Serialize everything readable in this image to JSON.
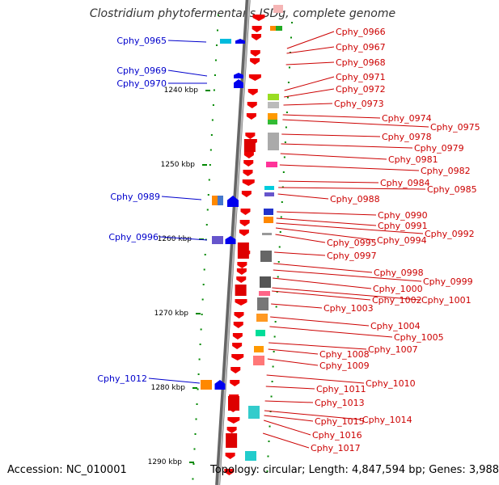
{
  "title": "Clostridium phytofermentans ISDg, complete genome",
  "footer": {
    "accession": "Accession: NC_010001",
    "topology": "Topology: circular; Length: 4,847,594 bp; Genes: 3,988"
  },
  "scale_labels": [
    "1240 kbp",
    "1250 kbp",
    "1260 kbp",
    "1270 kbp",
    "1280 kbp",
    "1290 kbp"
  ],
  "left_genes": [
    "Cphy_0965",
    "Cphy_0969",
    "Cphy_0970",
    "Cphy_0989",
    "Cphy_0996",
    "Cphy_1012"
  ],
  "right_genes": [
    "Cphy_0966",
    "Cphy_0967",
    "Cphy_0968",
    "Cphy_0971",
    "Cphy_0972",
    "Cphy_0973",
    "Cphy_0974",
    "Cphy_0975",
    "Cphy_0978",
    "Cphy_0979",
    "Cphy_0981",
    "Cphy_0982",
    "Cphy_0984",
    "Cphy_0985",
    "Cphy_0988",
    "Cphy_0990",
    "Cphy_0991",
    "Cphy_0992",
    "Cphy_0994",
    "Cphy_0995",
    "Cphy_0997",
    "Cphy_0998",
    "Cphy_0999",
    "Cphy_1000",
    "Cphy_1001",
    "Cphy_1002",
    "Cphy_1003",
    "Cphy_1004",
    "Cphy_1005",
    "Cphy_1007",
    "Cphy_1008",
    "Cphy_1009",
    "Cphy_1010",
    "Cphy_1011",
    "Cphy_1013",
    "Cphy_1014",
    "Cphy_1015",
    "Cphy_1016",
    "Cphy_1017"
  ],
  "colors": {
    "forward_strand": "#ee0000",
    "reverse_strand": "#0000ee",
    "left_label": "#0000cc",
    "right_label": "#cc0000",
    "tick": "#008800",
    "backbone": "#888888"
  }
}
